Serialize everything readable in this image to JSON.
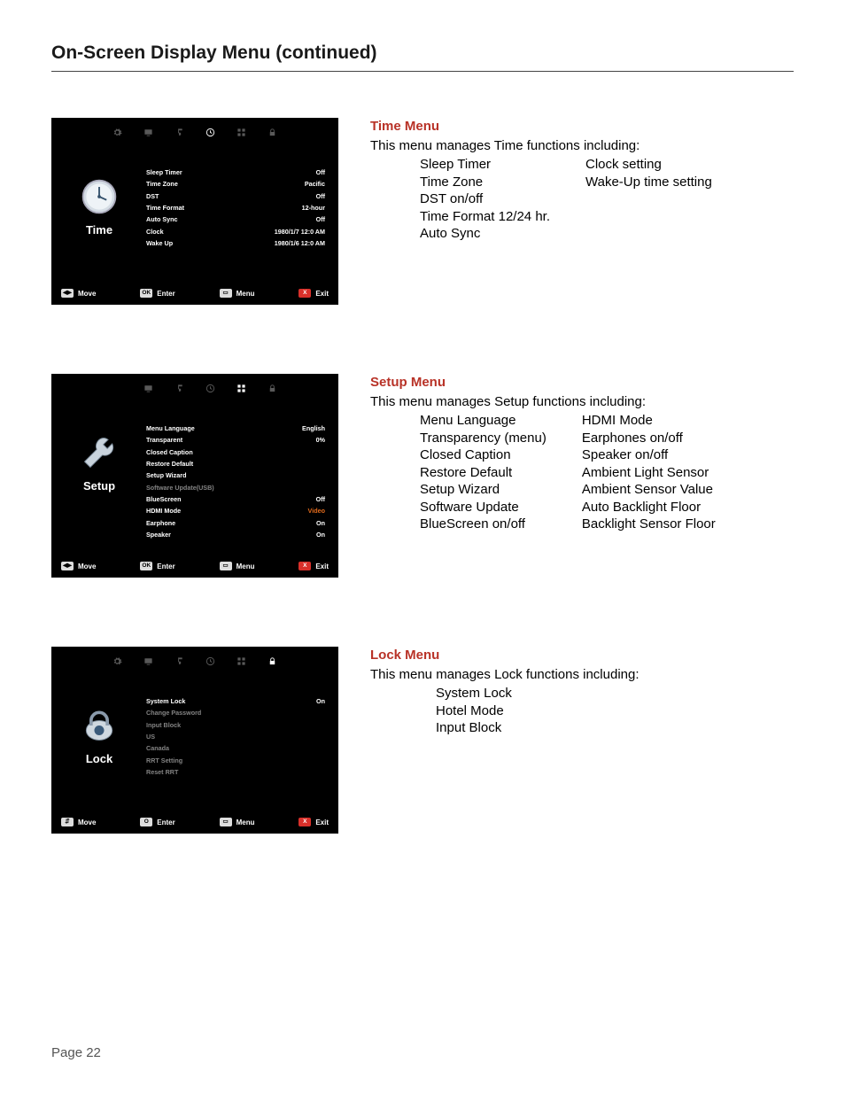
{
  "page": {
    "header": "On-Screen Display Menu (continued)",
    "number": "Page 22"
  },
  "colors": {
    "heading": "#b83227",
    "footer_badge_red": "#d9302a",
    "value_orange": "#e06a1c"
  },
  "sections": [
    {
      "id": "time",
      "desc": {
        "title": "Time Menu",
        "intro": "This menu manages Time functions including:",
        "col1": [
          "Sleep Timer",
          "Time Zone",
          "DST on/off",
          "Time Format 12/24 hr.",
          "Auto Sync"
        ],
        "col2": [
          "Clock setting",
          "Wake-Up time setting"
        ]
      },
      "shot": {
        "active_icon_index": 3,
        "left_label": "Time",
        "icon_type": "clock",
        "rows": [
          {
            "label": "Sleep Timer",
            "value": "Off"
          },
          {
            "label": "Time Zone",
            "value": "Pacific"
          },
          {
            "label": "DST",
            "value": "Off"
          },
          {
            "label": "Time Format",
            "value": "12-hour"
          },
          {
            "label": "Auto Sync",
            "value": "Off"
          },
          {
            "label": "Clock",
            "value": "1980/1/7 12:0 AM"
          },
          {
            "label": "Wake Up",
            "value": "1980/1/6 12:0 AM"
          }
        ],
        "footer": [
          {
            "badge": "◀▶",
            "badge_class": "white",
            "label": "Move"
          },
          {
            "badge": "OK",
            "badge_class": "white",
            "label": "Enter"
          },
          {
            "badge": "▭",
            "badge_class": "white",
            "label": "Menu"
          },
          {
            "badge": "X",
            "badge_class": "red",
            "label": "Exit"
          }
        ]
      }
    },
    {
      "id": "setup",
      "desc": {
        "title": "Setup Menu",
        "intro": "This menu manages Setup functions including:",
        "col1": [
          "Menu Language",
          "Transparency (menu)",
          "Closed Caption",
          "Restore Default",
          "Setup Wizard",
          "Software Update",
          "BlueScreen on/off"
        ],
        "col2": [
          "HDMI Mode",
          "Earphones on/off",
          "Speaker on/off",
          "Ambient Light Sensor",
          "Ambient Sensor Value",
          "Auto Backlight Floor",
          "Backlight Sensor Floor"
        ]
      },
      "shot": {
        "active_icon_index": 4,
        "hide_first_icon": true,
        "left_label": "Setup",
        "icon_type": "wrench",
        "rows": [
          {
            "label": "Menu Language",
            "value": "English"
          },
          {
            "label": "Transparent",
            "value": "0%"
          },
          {
            "label": "Closed Caption",
            "value": ""
          },
          {
            "label": "Restore Default",
            "value": ""
          },
          {
            "label": "Setup Wizard",
            "value": ""
          },
          {
            "label": "Software Update(USB)",
            "value": "",
            "dim": true
          },
          {
            "label": "BlueScreen",
            "value": "Off"
          },
          {
            "label": "HDMI Mode",
            "value": "Video",
            "value_orange": true
          },
          {
            "label": "Earphone",
            "value": "On"
          },
          {
            "label": "Speaker",
            "value": "On"
          }
        ],
        "footer": [
          {
            "badge": "◀▶",
            "badge_class": "white",
            "label": "Move"
          },
          {
            "badge": "OK",
            "badge_class": "white",
            "label": "Enter"
          },
          {
            "badge": "▭",
            "badge_class": "white",
            "label": "Menu"
          },
          {
            "badge": "X",
            "badge_class": "red",
            "label": "Exit"
          }
        ]
      }
    },
    {
      "id": "lock",
      "desc": {
        "title": "Lock Menu",
        "intro": "This menu manages Lock functions including:",
        "single_col": [
          "System Lock",
          "Hotel Mode",
          "Input Block"
        ]
      },
      "shot": {
        "active_icon_index": 5,
        "left_label": "Lock",
        "icon_type": "lock",
        "rows": [
          {
            "label": "System Lock",
            "value": "On"
          },
          {
            "label": "Change Password",
            "value": "",
            "dim": true
          },
          {
            "label": "Input Block",
            "value": "",
            "dim": true
          },
          {
            "label": "US",
            "value": "",
            "dim": true
          },
          {
            "label": "Canada",
            "value": "",
            "dim": true
          },
          {
            "label": "RRT Setting",
            "value": "",
            "dim": true
          },
          {
            "label": "Reset RRT",
            "value": "",
            "dim": true
          }
        ],
        "footer": [
          {
            "badge": "⇵",
            "badge_class": "white",
            "label": "Move"
          },
          {
            "badge": "O",
            "badge_class": "white",
            "label": "Enter"
          },
          {
            "badge": "▭",
            "badge_class": "white",
            "label": "Menu"
          },
          {
            "badge": "X",
            "badge_class": "red",
            "label": "Exit"
          }
        ]
      }
    }
  ]
}
